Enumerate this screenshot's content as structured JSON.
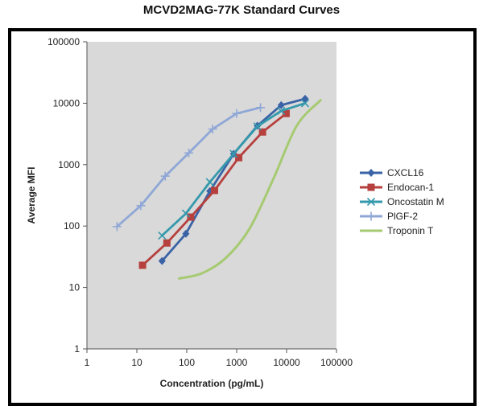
{
  "chart_data": {
    "type": "line",
    "title": "MCVD2MAG-77K Standard Curves",
    "xlabel": "Concentration (pg/mL)",
    "ylabel": "Average MFI",
    "xscale": "log",
    "yscale": "log",
    "xlim": [
      1,
      100000
    ],
    "ylim": [
      1,
      100000
    ],
    "x_ticks": [
      "1",
      "10",
      "100",
      "1000",
      "10000",
      "100000"
    ],
    "y_ticks": [
      "1",
      "10",
      "100",
      "1000",
      "10000",
      "100000"
    ],
    "grid": false,
    "plot_background": "#d9d9d9",
    "legend_position": "right",
    "series": [
      {
        "name": "CXCL16",
        "color": "#3a63a6",
        "marker": "diamond",
        "smooth": false,
        "x": [
          32,
          96,
          290,
          870,
          2600,
          7800,
          23500
        ],
        "y": [
          27,
          75,
          370,
          1500,
          4300,
          9300,
          11800
        ]
      },
      {
        "name": "Endocan-1",
        "color": "#b5403e",
        "marker": "square",
        "smooth": false,
        "x": [
          13,
          40,
          120,
          360,
          1100,
          3300,
          9800
        ],
        "y": [
          23,
          53,
          140,
          380,
          1300,
          3400,
          6800
        ]
      },
      {
        "name": "Oncostatin M",
        "color": "#3599ac",
        "marker": "x",
        "smooth": false,
        "x": [
          32,
          96,
          290,
          870,
          2600,
          7800,
          23500
        ],
        "y": [
          70,
          160,
          520,
          1500,
          4200,
          7500,
          10000
        ]
      },
      {
        "name": "PlGF-2",
        "color": "#8fa7d6",
        "marker": "plus",
        "smooth": false,
        "x": [
          4,
          12,
          37,
          110,
          330,
          1000,
          3000
        ],
        "y": [
          98,
          215,
          650,
          1550,
          3800,
          6800,
          8500
        ]
      },
      {
        "name": "Troponin T",
        "color": "#a6ca72",
        "marker": "none",
        "smooth": true,
        "x": [
          70,
          200,
          600,
          1800,
          5500,
          16000,
          48000
        ],
        "y": [
          14,
          17,
          30,
          90,
          600,
          4300,
          11200
        ]
      }
    ]
  }
}
